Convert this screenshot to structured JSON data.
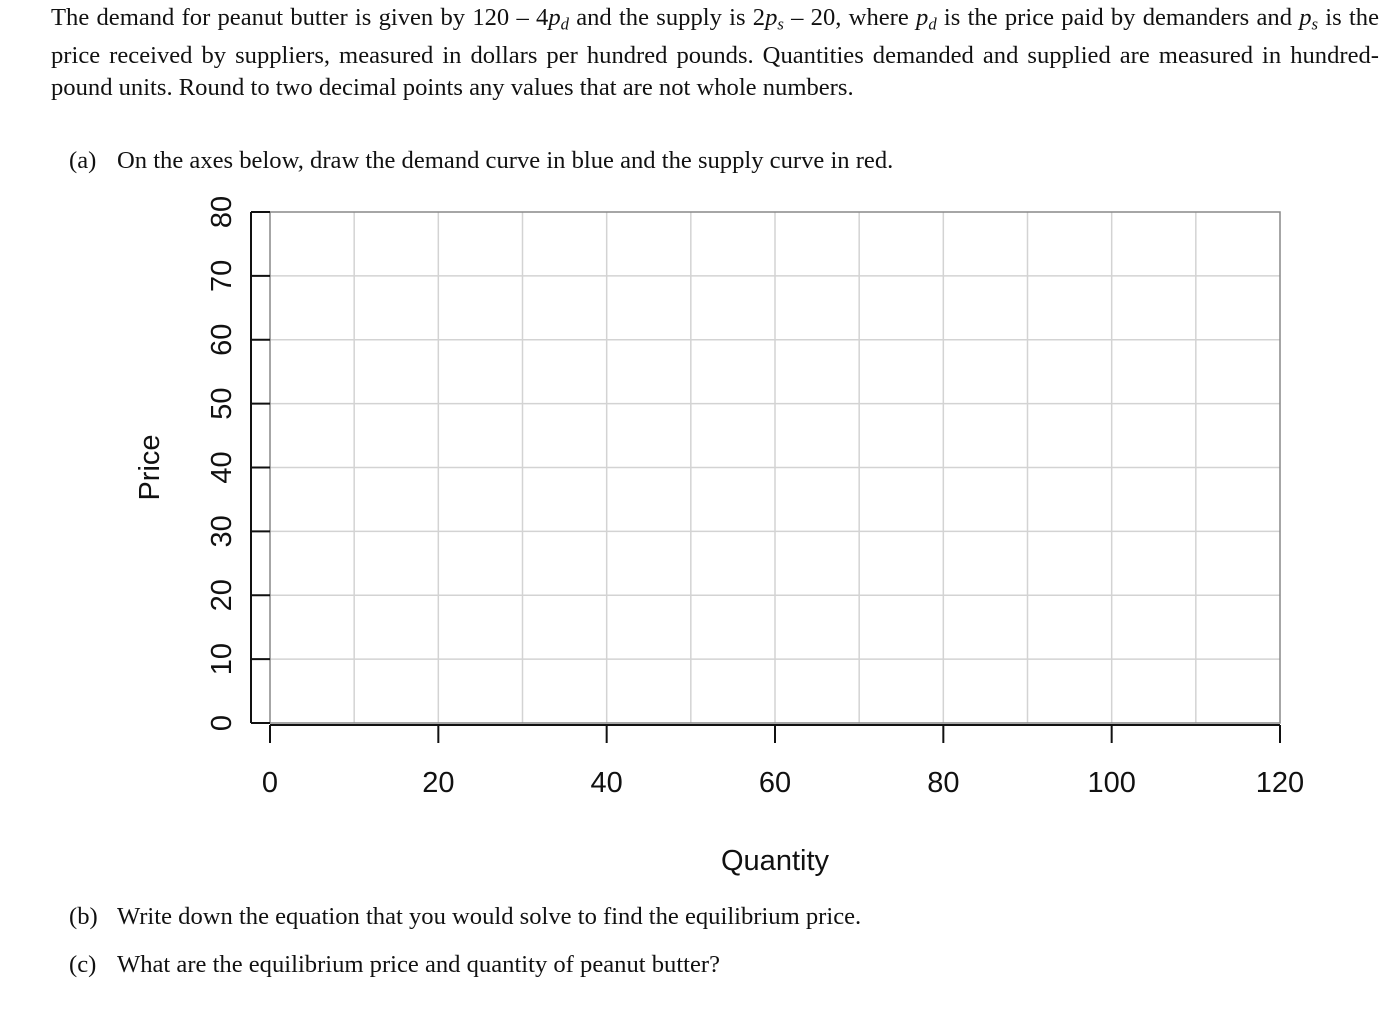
{
  "problem": {
    "t1": "The demand for peanut butter is given by 120 – 4",
    "t2": " and the supply is 2",
    "t3": " – 20, where ",
    "t4": " is the price paid by demanders and ",
    "t5": " is the price received by suppliers, measured in dollars per hundred pounds. Quantities demanded and supplied are measured in hundred-pound units. Round to two decimal points any values that are not whole numbers.",
    "p": "p",
    "d": "d",
    "s": "s"
  },
  "parts": [
    {
      "label": "(a)",
      "text": "On the axes below, draw the demand curve in blue and the supply curve in red."
    },
    {
      "label": "(b)",
      "text": "Write down the equation that you would solve to find the equilibrium price."
    },
    {
      "label": "(c)",
      "text": "What are the equilibrium price and quantity of peanut butter?"
    }
  ],
  "chart_data": {
    "type": "line",
    "title": "",
    "xlabel": "Quantity",
    "ylabel": "Price",
    "xlim": [
      0,
      120
    ],
    "ylim": [
      0,
      80
    ],
    "x_ticks": [
      0,
      20,
      40,
      60,
      80,
      100,
      120
    ],
    "y_ticks": [
      0,
      10,
      20,
      30,
      40,
      50,
      60,
      70,
      80
    ],
    "x_grid": [
      10,
      20,
      30,
      40,
      50,
      60,
      70,
      80,
      90,
      100,
      110
    ],
    "y_grid": [
      10,
      20,
      30,
      40,
      50,
      60,
      70
    ],
    "grid": true,
    "grid_color": "#d3d3d3",
    "series": []
  }
}
